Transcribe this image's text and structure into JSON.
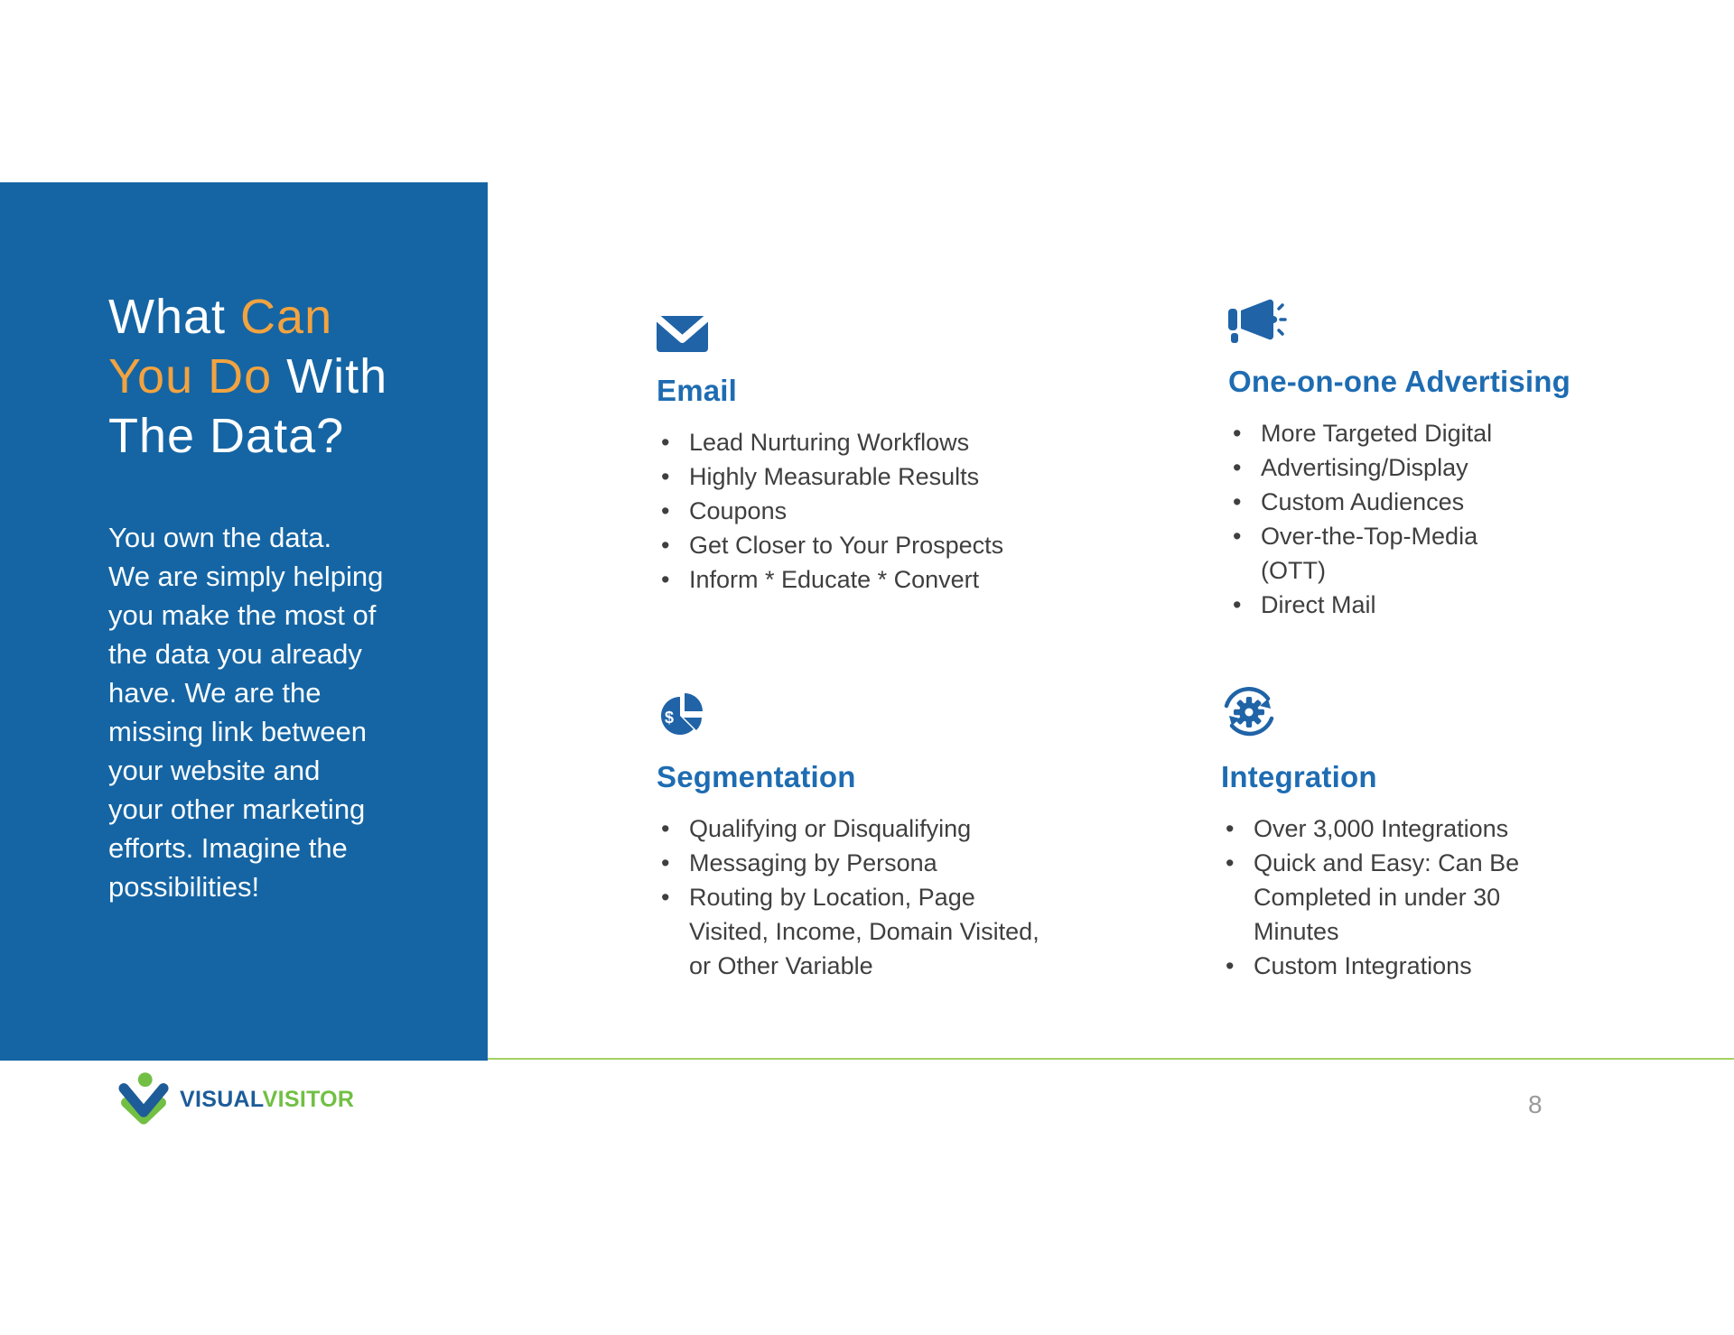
{
  "colors": {
    "panel_blue": "#1565A4",
    "accent_orange": "#F2A340",
    "heading_blue": "#1E6CB2",
    "icon_blue": "#2063A7",
    "body_text": "#3F3F3F",
    "divider_green": "#A3D165",
    "logo_blue": "#1D5C99",
    "logo_green": "#72BF44",
    "page_number_gray": "#999999"
  },
  "panel": {
    "title_line1_white": "What ",
    "title_line1_orange": "Can",
    "title_line2_orange": "You Do",
    "title_line2_white": " With",
    "title_line3": "The Data?",
    "paragraph": "You own the data.\nWe are simply helping\nyou make the most of\nthe data you already\nhave.  We are the\nmissing link between\nyour website and\nyour other marketing\nefforts. Imagine the\npossibilities!"
  },
  "sections": [
    {
      "title": "Email",
      "icon": "envelope-icon",
      "bullets": [
        "Lead Nurturing Workflows",
        "Highly Measurable Results",
        "Coupons",
        "Get Closer to Your Prospects",
        "Inform * Educate * Convert"
      ]
    },
    {
      "title": "One-on-one Advertising",
      "icon": "megaphone-icon",
      "bullets": [
        "More Targeted Digital",
        "Advertising/Display",
        "Custom Audiences",
        "Over-the-Top-Media\n(OTT)",
        "Direct Mail"
      ]
    },
    {
      "title": "Segmentation",
      "icon": "pie-chart-dollar-icon",
      "bullets": [
        "Qualifying or Disqualifying",
        "Messaging by Persona",
        "Routing by Location, Page\nVisited, Income, Domain Visited,\nor Other Variable"
      ]
    },
    {
      "title": "Integration",
      "icon": "sync-gear-icon",
      "bullets": [
        "Over 3,000 Integrations",
        "Quick and Easy: Can Be\nCompleted in under 30\nMinutes",
        "Custom Integrations"
      ]
    }
  ],
  "footer": {
    "logo_text_primary": "VISUAL",
    "logo_text_secondary": "VISITOR",
    "page_number": "8"
  }
}
